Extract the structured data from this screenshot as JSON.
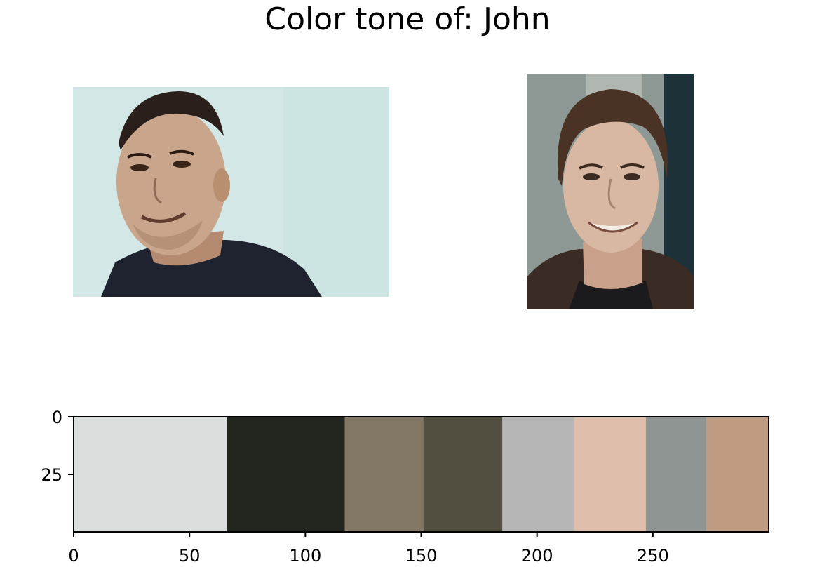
{
  "title": "Color tone of: John",
  "images": [
    {
      "subject": "person-left",
      "background": "#d3e8e6",
      "skin": "#c9a58c",
      "hair": "#2a1f1a",
      "shirt": "#1f2330"
    },
    {
      "subject": "person-right",
      "background": "#8e9894",
      "skin": "#d9b8a3",
      "hair": "#4a3325",
      "shirt": "#3a2b24"
    }
  ],
  "chart_data": {
    "type": "bar",
    "orientation": "horizontal-stacked-strip",
    "xlim": [
      0,
      300
    ],
    "ylim": [
      50,
      0
    ],
    "x_ticks": [
      0,
      50,
      100,
      150,
      200,
      250
    ],
    "y_ticks": [
      0,
      25
    ],
    "x_tick_labels": [
      "0",
      "50",
      "100",
      "150",
      "200",
      "250"
    ],
    "y_tick_labels": [
      "0",
      "25"
    ],
    "segments": [
      {
        "start": 0,
        "end": 66,
        "color": "#dadfde"
      },
      {
        "start": 66,
        "end": 117,
        "color": "#22241e"
      },
      {
        "start": 117,
        "end": 151,
        "color": "#827665"
      },
      {
        "start": 151,
        "end": 185,
        "color": "#524f41"
      },
      {
        "start": 185,
        "end": 216,
        "color": "#b5b6b5"
      },
      {
        "start": 216,
        "end": 247,
        "color": "#dfbfab"
      },
      {
        "start": 247,
        "end": 273,
        "color": "#8f9593"
      },
      {
        "start": 273,
        "end": 300,
        "color": "#bf9b81"
      }
    ]
  }
}
